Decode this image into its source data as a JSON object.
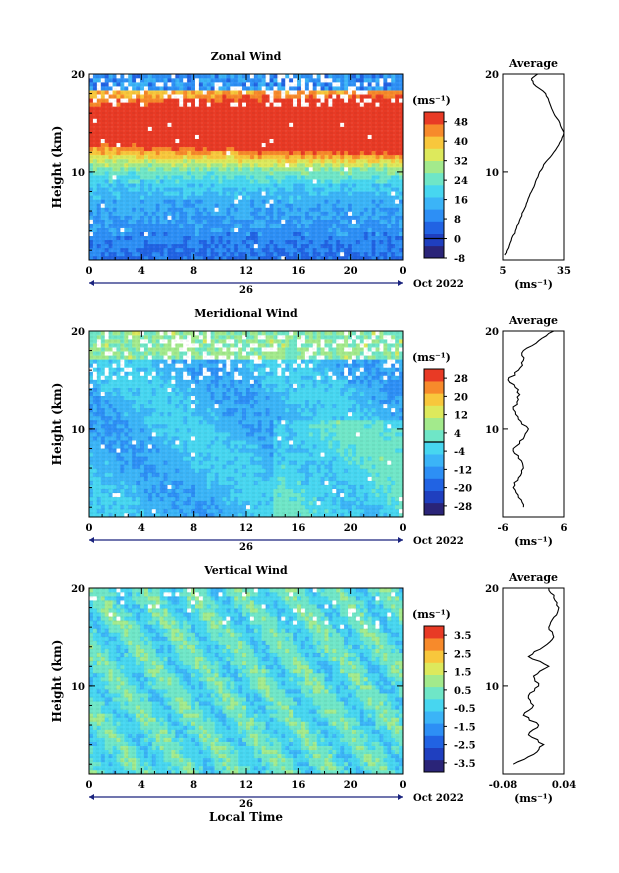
{
  "chart_data": [
    {
      "type": "heatmap",
      "title": "Zonal Wind",
      "ylabel": "Height (km)",
      "xlabel": "",
      "x_ticks": [
        "0",
        "4",
        "8",
        "12",
        "16",
        "20",
        "0"
      ],
      "day_label": "26",
      "month_label": "Oct 2022",
      "y_ticks": [
        "20",
        "10"
      ],
      "ylim": [
        1,
        20
      ],
      "xlim": [
        0,
        24
      ],
      "colorbar": {
        "unit_label": "(ms⁻¹)",
        "ticks": [
          "48",
          "40",
          "32",
          "24",
          "16",
          "8",
          "0",
          "-8"
        ],
        "range": [
          -8,
          52
        ],
        "zero_line": 0
      },
      "field": {
        "surface": 6,
        "jet_height": 14.5,
        "jet_peak": 44
      },
      "profile": {
        "title": "Average",
        "x_ticks": [
          "5",
          "35"
        ],
        "xlim": [
          5,
          35
        ],
        "y_ticks": [
          "20",
          "10"
        ],
        "xlabel": "(ms⁻¹)",
        "heights": [
          1.5,
          2,
          3,
          4,
          5,
          6,
          7,
          8,
          9,
          10,
          11,
          12,
          13,
          14,
          15,
          16,
          17,
          18,
          19,
          19.5,
          20
        ],
        "values": [
          6,
          7,
          9,
          11,
          13,
          15,
          17,
          19,
          21,
          23,
          26,
          30,
          33,
          35,
          33,
          30,
          28,
          26,
          20,
          19,
          22
        ]
      }
    },
    {
      "type": "heatmap",
      "title": "Meridional Wind",
      "ylabel": "Height (km)",
      "xlabel": "",
      "x_ticks": [
        "0",
        "4",
        "8",
        "12",
        "16",
        "20",
        "0"
      ],
      "day_label": "26",
      "month_label": "Oct 2022",
      "y_ticks": [
        "20",
        "10"
      ],
      "ylim": [
        1,
        20
      ],
      "xlim": [
        0,
        24
      ],
      "colorbar": {
        "unit_label": "(ms⁻¹)",
        "ticks": [
          "28",
          "20",
          "12",
          "4",
          "-4",
          "-12",
          "-20",
          "-28"
        ],
        "range": [
          -32,
          32
        ],
        "zero_line": 0
      },
      "field": {
        "mean": -7
      },
      "profile": {
        "title": "Average",
        "x_ticks": [
          "-6",
          "6"
        ],
        "xlim": [
          -6,
          6
        ],
        "y_ticks": [
          "20",
          "10"
        ],
        "xlabel": "(ms⁻¹)",
        "heights": [
          2,
          3,
          4,
          5,
          6,
          7,
          8,
          9,
          10,
          11,
          12,
          13,
          14,
          15,
          16,
          17,
          18,
          19,
          20
        ],
        "values": [
          -2,
          -3,
          -4,
          -3,
          -2,
          -3,
          -4,
          -2,
          -1,
          -3,
          -4,
          -3,
          -3,
          -5,
          -3,
          -2,
          -2,
          1,
          4
        ]
      }
    },
    {
      "type": "heatmap",
      "title": "Vertical Wind",
      "ylabel": "Height (km)",
      "xlabel": "Local Time",
      "x_ticks": [
        "0",
        "4",
        "8",
        "12",
        "16",
        "20",
        "0"
      ],
      "day_label": "26",
      "month_label": "Oct 2022",
      "y_ticks": [
        "20",
        "10"
      ],
      "ylim": [
        1,
        20
      ],
      "xlim": [
        0,
        24
      ],
      "colorbar": {
        "unit_label": "(ms⁻¹)",
        "ticks": [
          "3.5",
          "2.5",
          "1.5",
          "0.5",
          "-0.5",
          "-1.5",
          "-2.5",
          "-3.5"
        ],
        "range": [
          -4,
          4
        ],
        "zero_line": null
      },
      "field": {
        "mean": 0
      },
      "profile": {
        "title": "Average",
        "x_ticks": [
          "-0.08",
          "0.04"
        ],
        "xlim": [
          -0.08,
          0.04
        ],
        "y_ticks": [
          "20",
          "10"
        ],
        "xlabel": "(ms⁻¹)",
        "heights": [
          2,
          3,
          4,
          5,
          6,
          7,
          8,
          9,
          10,
          11,
          12,
          13,
          14,
          15,
          16,
          17,
          18,
          19,
          20
        ],
        "values": [
          -0.06,
          -0.02,
          0.0,
          -0.03,
          -0.01,
          -0.04,
          -0.02,
          -0.03,
          -0.01,
          -0.02,
          0.01,
          -0.03,
          0.0,
          0.02,
          0.01,
          0.02,
          0.03,
          0.02,
          0.01
        ]
      }
    }
  ]
}
